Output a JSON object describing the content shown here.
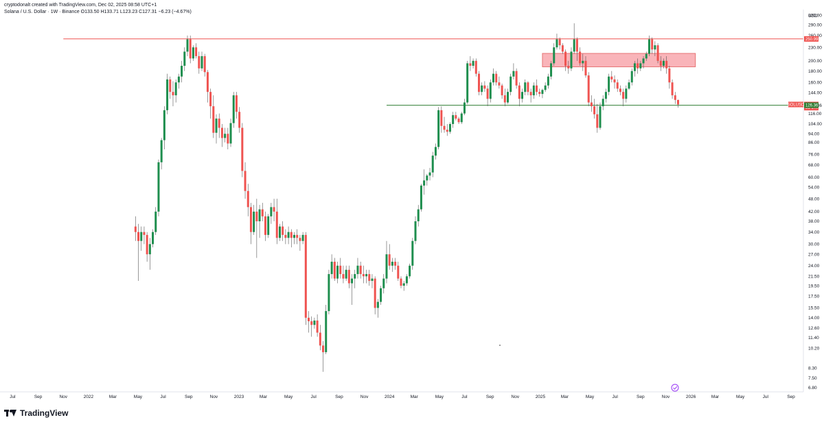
{
  "header": {
    "line1": "cryptodonalt created with TradingView.com, Dec 02, 2025 08:58 UTC+1",
    "line2": "Solana / U.S. Dollar · 1W · Binance  O133.50  H133.71  L123.23  C127.31  −6.23 (−4.67%)"
  },
  "footer": {
    "logo_text": "TradingView"
  },
  "colors": {
    "up": "#26a69a",
    "up_dark": "#1e8e4e",
    "down": "#ef5350",
    "resistance": "#ef5350",
    "support": "#2e7d32",
    "zone_fill": "#f7a1a8",
    "zone_border": "#e57373",
    "wick": "#555555"
  },
  "chart_data": {
    "type": "candlestick",
    "symbol": "SOLUSD",
    "y_axis": {
      "unit": "USD",
      "scale": "log",
      "ticks": [
        320.0,
        290.0,
        260.0,
        230.0,
        200.0,
        180.0,
        160.0,
        144.0,
        126.36,
        116.0,
        104.0,
        94.0,
        86.0,
        76.0,
        68.0,
        60.0,
        54.0,
        48.0,
        42.0,
        38.0,
        34.0,
        30.0,
        27.0,
        24.0,
        21.5,
        19.5,
        17.5,
        15.5,
        14.0,
        12.6,
        11.4,
        10.2,
        8.3,
        7.5,
        6.8
      ],
      "tick_labels": [
        "320.00",
        "290.00",
        "260.00",
        "230.00",
        "200.00",
        "180.00",
        "160.00",
        "144.00",
        "126.36",
        "116.00",
        "104.00",
        "94.00",
        "86.00",
        "76.00",
        "68.00",
        "60.00",
        "54.00",
        "48.00",
        "42.00",
        "38.00",
        "34.00",
        "30.00",
        "27.00",
        "24.00",
        "21.50",
        "19.50",
        "17.50",
        "15.50",
        "14.00",
        "12.60",
        "11.40",
        "10.20",
        "8.30",
        "7.50",
        "6.80"
      ],
      "range": [
        6.5,
        340
      ]
    },
    "x_axis": {
      "labels": [
        {
          "label": "Jul",
          "date": "2021-07-01"
        },
        {
          "label": "Sep",
          "date": "2021-09-01"
        },
        {
          "label": "Nov",
          "date": "2021-11-01"
        },
        {
          "label": "2022",
          "date": "2022-01-01"
        },
        {
          "label": "Mar",
          "date": "2022-03-01"
        },
        {
          "label": "May",
          "date": "2022-05-01"
        },
        {
          "label": "Jul",
          "date": "2022-07-01"
        },
        {
          "label": "Sep",
          "date": "2022-09-01"
        },
        {
          "label": "Nov",
          "date": "2022-11-01"
        },
        {
          "label": "2023",
          "date": "2023-01-01"
        },
        {
          "label": "Mar",
          "date": "2023-03-01"
        },
        {
          "label": "May",
          "date": "2023-05-01"
        },
        {
          "label": "Jul",
          "date": "2023-07-01"
        },
        {
          "label": "Sep",
          "date": "2023-09-01"
        },
        {
          "label": "Nov",
          "date": "2023-11-01"
        },
        {
          "label": "2024",
          "date": "2024-01-01"
        },
        {
          "label": "Mar",
          "date": "2024-03-01"
        },
        {
          "label": "May",
          "date": "2024-05-01"
        },
        {
          "label": "Jul",
          "date": "2024-07-01"
        },
        {
          "label": "Sep",
          "date": "2024-09-01"
        },
        {
          "label": "Nov",
          "date": "2024-11-01"
        },
        {
          "label": "2025",
          "date": "2025-01-01"
        },
        {
          "label": "Mar",
          "date": "2025-03-01"
        },
        {
          "label": "May",
          "date": "2025-05-01"
        },
        {
          "label": "Jul",
          "date": "2025-07-01"
        },
        {
          "label": "Sep",
          "date": "2025-09-01"
        },
        {
          "label": "Nov",
          "date": "2025-11-01"
        },
        {
          "label": "2026",
          "date": "2026-01-01"
        },
        {
          "label": "Mar",
          "date": "2026-03-01"
        },
        {
          "label": "May",
          "date": "2026-05-01"
        },
        {
          "label": "Jul",
          "date": "2026-07-01"
        },
        {
          "label": "Sep",
          "date": "2026-09-01"
        }
      ]
    },
    "price_tags": [
      {
        "text": "250.99",
        "value": 250.99,
        "color": "#ef5350"
      },
      {
        "text": "SOLUSD",
        "value": 127.31,
        "color": "#ef5350",
        "side": "left"
      },
      {
        "text": "127.31",
        "value": 127.31,
        "color": "#ef5350"
      },
      {
        "text": "3d 17h",
        "value": 123.2,
        "color": "#ef5350"
      },
      {
        "text": "126.36",
        "value": 126.36,
        "color": "#2e7d32"
      }
    ],
    "levels": [
      {
        "type": "horizontal",
        "value": 250.99,
        "from": "2021-11-01",
        "to": "end",
        "color": "#ef5350"
      },
      {
        "type": "horizontal",
        "value": 126.36,
        "from": "2023-12-25",
        "to": "end",
        "color": "#2e7d32"
      }
    ],
    "zones": [
      {
        "from": "2025-01-06",
        "to": "2026-01-12",
        "low": 188,
        "high": 216
      }
    ],
    "candles": [
      [
        36.0,
        40.0,
        31.0,
        34.0
      ],
      [
        34.0,
        37.0,
        20.5,
        31.0
      ],
      [
        31.0,
        36.0,
        28.0,
        34.0
      ],
      [
        34.0,
        36.0,
        30.0,
        33.0
      ],
      [
        33.0,
        34.0,
        25.0,
        27.0
      ],
      [
        27.0,
        32.0,
        23.0,
        30.0
      ],
      [
        30.0,
        35.0,
        29.0,
        34.0
      ],
      [
        34.0,
        44.0,
        33.0,
        42.0
      ],
      [
        42.0,
        72.0,
        40.0,
        70.0
      ],
      [
        70.0,
        90.0,
        65.0,
        88.0
      ],
      [
        88.0,
        125.0,
        80.0,
        120.0
      ],
      [
        120.0,
        175.0,
        115.0,
        165.0
      ],
      [
        165.0,
        170.0,
        135.0,
        145.0
      ],
      [
        145.0,
        162.0,
        125.0,
        140.0
      ],
      [
        140.0,
        165.0,
        130.0,
        160.0
      ],
      [
        160.0,
        175.0,
        150.0,
        170.0
      ],
      [
        170.0,
        200.0,
        160.0,
        190.0
      ],
      [
        190.0,
        230.0,
        180.0,
        220.0
      ],
      [
        220.0,
        260.0,
        210.0,
        250.0
      ],
      [
        250.0,
        260.0,
        195.0,
        205.0
      ],
      [
        205.0,
        235.0,
        200.0,
        230.0
      ],
      [
        230.0,
        240.0,
        205.0,
        210.0
      ],
      [
        210.0,
        220.0,
        175.0,
        185.0
      ],
      [
        185.0,
        220.0,
        180.0,
        210.0
      ],
      [
        210.0,
        215.0,
        170.0,
        178.0
      ],
      [
        178.0,
        182.0,
        130.0,
        145.0
      ],
      [
        145.0,
        150.0,
        110.0,
        125.0
      ],
      [
        125.0,
        140.0,
        90.0,
        95.0
      ],
      [
        95.0,
        115.0,
        85.0,
        110.0
      ],
      [
        110.0,
        116.0,
        90.0,
        100.0
      ],
      [
        100.0,
        104.0,
        82.0,
        90.0
      ],
      [
        90.0,
        100.0,
        86.0,
        94.0
      ],
      [
        94.0,
        100.0,
        80.0,
        85.0
      ],
      [
        85.0,
        110.0,
        82.0,
        105.0
      ],
      [
        105.0,
        145.0,
        100.0,
        140.0
      ],
      [
        140.0,
        145.0,
        110.0,
        118.0
      ],
      [
        118.0,
        124.0,
        95.0,
        100.0
      ],
      [
        100.0,
        105.0,
        60.0,
        64.0
      ],
      [
        64.0,
        70.0,
        48.0,
        52.0
      ],
      [
        52.0,
        56.0,
        40.0,
        44.0
      ],
      [
        44.0,
        46.0,
        30.0,
        34.0
      ],
      [
        34.0,
        45.0,
        33.0,
        42.0
      ],
      [
        42.0,
        48.0,
        26.0,
        38.0
      ],
      [
        38.0,
        45.0,
        32.0,
        43.0
      ],
      [
        43.0,
        46.0,
        38.0,
        40.0
      ],
      [
        40.0,
        42.0,
        31.0,
        33.0
      ],
      [
        33.0,
        41.0,
        32.0,
        40.0
      ],
      [
        40.0,
        46.0,
        37.0,
        44.0
      ],
      [
        44.0,
        48.0,
        38.0,
        42.0
      ],
      [
        42.0,
        48.0,
        30.0,
        32.0
      ],
      [
        32.0,
        37.0,
        31.0,
        36.0
      ],
      [
        36.0,
        38.0,
        31.0,
        33.0
      ],
      [
        33.0,
        35.0,
        30.0,
        32.0
      ],
      [
        32.0,
        36.0,
        30.0,
        34.0
      ],
      [
        34.0,
        35.0,
        29.0,
        32.0
      ],
      [
        32.0,
        34.0,
        30.0,
        33.0
      ],
      [
        33.0,
        35.0,
        30.0,
        32.0
      ],
      [
        32.0,
        33.0,
        28.0,
        31.0
      ],
      [
        31.0,
        34.0,
        30.0,
        33.0
      ],
      [
        33.0,
        34.0,
        13.0,
        14.0
      ],
      [
        14.0,
        15.0,
        12.0,
        13.5
      ],
      [
        13.5,
        14.2,
        11.5,
        13.0
      ],
      [
        13.0,
        14.0,
        12.5,
        13.6
      ],
      [
        13.6,
        14.5,
        11.5,
        12.0
      ],
      [
        12.0,
        13.0,
        10.0,
        10.5
      ],
      [
        10.5,
        11.0,
        8.0,
        9.8
      ],
      [
        9.8,
        16.0,
        9.6,
        15.0
      ],
      [
        15.0,
        23.0,
        14.5,
        22.0
      ],
      [
        22.0,
        27.0,
        21.0,
        25.0
      ],
      [
        25.0,
        26.0,
        20.5,
        21.0
      ],
      [
        21.0,
        25.0,
        20.0,
        24.0
      ],
      [
        24.0,
        26.0,
        21.0,
        22.0
      ],
      [
        22.0,
        24.0,
        20.0,
        21.0
      ],
      [
        21.0,
        24.0,
        20.5,
        23.0
      ],
      [
        23.0,
        24.0,
        19.0,
        20.0
      ],
      [
        20.0,
        22.0,
        16.0,
        21.0
      ],
      [
        21.0,
        23.0,
        19.0,
        22.0
      ],
      [
        22.0,
        26.0,
        21.0,
        24.0
      ],
      [
        24.0,
        25.0,
        21.0,
        22.0
      ],
      [
        22.0,
        24.0,
        20.0,
        21.5
      ],
      [
        21.5,
        23.0,
        20.0,
        22.0
      ],
      [
        22.0,
        23.0,
        19.5,
        20.5
      ],
      [
        20.5,
        22.0,
        19.0,
        21.0
      ],
      [
        21.0,
        21.5,
        14.5,
        15.5
      ],
      [
        15.5,
        17.0,
        14.0,
        16.5
      ],
      [
        16.5,
        19.5,
        16.0,
        19.0
      ],
      [
        19.0,
        22.0,
        18.0,
        21.0
      ],
      [
        21.0,
        31.0,
        20.0,
        27.0
      ],
      [
        27.0,
        30.0,
        23.0,
        24.0
      ],
      [
        24.0,
        26.0,
        22.5,
        25.0
      ],
      [
        25.0,
        26.0,
        23.0,
        24.0
      ],
      [
        24.0,
        25.0,
        20.5,
        21.0
      ],
      [
        21.0,
        21.5,
        19.0,
        19.5
      ],
      [
        19.5,
        20.5,
        18.5,
        20.0
      ],
      [
        20.0,
        22.0,
        19.5,
        21.5
      ],
      [
        21.5,
        24.5,
        21.0,
        24.0
      ],
      [
        24.0,
        32.0,
        23.0,
        31.0
      ],
      [
        31.0,
        40.0,
        30.0,
        38.0
      ],
      [
        38.0,
        45.0,
        36.0,
        43.0
      ],
      [
        43.0,
        56.0,
        42.0,
        55.0
      ],
      [
        55.0,
        65.0,
        50.0,
        58.0
      ],
      [
        58.0,
        62.0,
        55.0,
        61.0
      ],
      [
        61.0,
        66.0,
        58.0,
        63.0
      ],
      [
        63.0,
        78.0,
        60.0,
        75.0
      ],
      [
        75.0,
        85.0,
        72.0,
        82.0
      ],
      [
        82.0,
        124.0,
        80.0,
        120.0
      ],
      [
        120.0,
        125.0,
        95.0,
        102.0
      ],
      [
        102.0,
        112.0,
        95.0,
        98.0
      ],
      [
        98.0,
        104.0,
        92.0,
        96.0
      ],
      [
        96.0,
        106.0,
        94.0,
        104.0
      ],
      [
        104.0,
        118.0,
        100.0,
        114.0
      ],
      [
        114.0,
        118.0,
        108.0,
        110.0
      ],
      [
        110.0,
        112.0,
        104.0,
        106.0
      ],
      [
        106.0,
        118.0,
        104.0,
        116.0
      ],
      [
        116.0,
        135.0,
        114.0,
        130.0
      ],
      [
        130.0,
        200.0,
        128.0,
        195.0
      ],
      [
        195.0,
        210.0,
        180.0,
        190.0
      ],
      [
        190.0,
        205.0,
        185.0,
        200.0
      ],
      [
        200.0,
        205.0,
        170.0,
        175.0
      ],
      [
        175.0,
        180.0,
        140.0,
        145.0
      ],
      [
        145.0,
        160.0,
        140.0,
        155.0
      ],
      [
        155.0,
        162.0,
        145.0,
        150.0
      ],
      [
        150.0,
        155.0,
        125.0,
        135.0
      ],
      [
        135.0,
        165.0,
        130.0,
        160.0
      ],
      [
        160.0,
        185.0,
        155.0,
        175.0
      ],
      [
        175.0,
        180.0,
        155.0,
        160.0
      ],
      [
        160.0,
        170.0,
        150.0,
        155.0
      ],
      [
        155.0,
        158.0,
        135.0,
        140.0
      ],
      [
        140.0,
        150.0,
        125.0,
        130.0
      ],
      [
        130.0,
        150.0,
        128.0,
        145.0
      ],
      [
        145.0,
        175.0,
        140.0,
        170.0
      ],
      [
        170.0,
        195.0,
        165.0,
        180.0
      ],
      [
        180.0,
        185.0,
        150.0,
        155.0
      ],
      [
        155.0,
        160.0,
        125.0,
        135.0
      ],
      [
        135.0,
        150.0,
        130.0,
        145.0
      ],
      [
        145.0,
        165.0,
        140.0,
        160.0
      ],
      [
        160.0,
        162.0,
        140.0,
        145.0
      ],
      [
        145.0,
        150.0,
        130.0,
        140.0
      ],
      [
        140.0,
        160.0,
        135.0,
        155.0
      ],
      [
        155.0,
        165.0,
        140.0,
        145.0
      ],
      [
        145.0,
        150.0,
        138.0,
        142.0
      ],
      [
        142.0,
        150.0,
        136.0,
        148.0
      ],
      [
        148.0,
        160.0,
        145.0,
        155.0
      ],
      [
        155.0,
        175.0,
        150.0,
        170.0
      ],
      [
        170.0,
        200.0,
        165.0,
        195.0
      ],
      [
        195.0,
        240.0,
        190.0,
        230.0
      ],
      [
        230.0,
        265.0,
        225.0,
        250.0
      ],
      [
        250.0,
        255.0,
        225.0,
        235.0
      ],
      [
        235.0,
        240.0,
        215.0,
        220.0
      ],
      [
        220.0,
        225.0,
        180.0,
        190.0
      ],
      [
        190.0,
        200.0,
        175.0,
        185.0
      ],
      [
        185.0,
        230.0,
        180.0,
        220.0
      ],
      [
        220.0,
        295.0,
        215.0,
        250.0
      ],
      [
        250.0,
        255.0,
        200.0,
        220.0
      ],
      [
        220.0,
        230.0,
        190.0,
        195.0
      ],
      [
        195.0,
        215.0,
        180.0,
        200.0
      ],
      [
        200.0,
        210.0,
        168.0,
        172.0
      ],
      [
        172.0,
        178.0,
        125.0,
        130.0
      ],
      [
        130.0,
        140.0,
        118.0,
        125.0
      ],
      [
        125.0,
        135.0,
        110.0,
        115.0
      ],
      [
        115.0,
        128.0,
        95.0,
        100.0
      ],
      [
        100.0,
        130.0,
        98.0,
        125.0
      ],
      [
        125.0,
        140.0,
        120.0,
        135.0
      ],
      [
        135.0,
        150.0,
        130.0,
        145.0
      ],
      [
        145.0,
        175.0,
        140.0,
        170.0
      ],
      [
        170.0,
        180.0,
        160.0,
        165.0
      ],
      [
        165.0,
        172.0,
        150.0,
        160.0
      ],
      [
        160.0,
        165.0,
        145.0,
        150.0
      ],
      [
        150.0,
        155.0,
        140.0,
        145.0
      ],
      [
        145.0,
        150.0,
        125.0,
        135.0
      ],
      [
        135.0,
        155.0,
        130.0,
        150.0
      ],
      [
        150.0,
        165.0,
        148.0,
        160.0
      ],
      [
        160.0,
        185.0,
        155.0,
        180.0
      ],
      [
        180.0,
        200.0,
        170.0,
        195.0
      ],
      [
        195.0,
        205.0,
        175.0,
        185.0
      ],
      [
        185.0,
        200.0,
        180.0,
        195.0
      ],
      [
        195.0,
        210.0,
        185.0,
        205.0
      ],
      [
        205.0,
        220.0,
        200.0,
        215.0
      ],
      [
        215.0,
        260.0,
        210.0,
        250.0
      ],
      [
        250.0,
        255.0,
        215.0,
        225.0
      ],
      [
        225.0,
        245.0,
        210.0,
        235.0
      ],
      [
        235.0,
        240.0,
        195.0,
        200.0
      ],
      [
        200.0,
        210.0,
        180.0,
        190.0
      ],
      [
        190.0,
        205.0,
        185.0,
        200.0
      ],
      [
        200.0,
        210.0,
        175.0,
        185.0
      ],
      [
        185.0,
        190.0,
        150.0,
        160.0
      ],
      [
        160.0,
        165.0,
        135.0,
        140.0
      ],
      [
        140.0,
        145.0,
        128.0,
        133.5
      ],
      [
        133.5,
        133.71,
        123.23,
        127.31
      ]
    ]
  }
}
